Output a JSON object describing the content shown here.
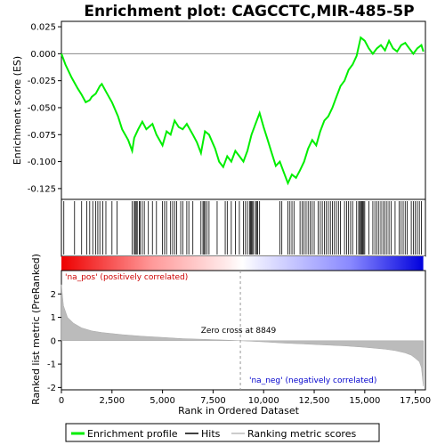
{
  "chart_data": {
    "type": "line",
    "title": "Enrichment plot: CAGCCTC,MIR-485-5P",
    "xlabel": "Rank in Ordered Dataset",
    "ylabel_top": "Enrichment score (ES)",
    "ylabel_bottom": "Ranked list metric (PreRanked)",
    "xlim": [
      0,
      18000
    ],
    "x_ticks": [
      0,
      2500,
      5000,
      7500,
      10000,
      12500,
      15000,
      17500
    ],
    "x_tick_labels": [
      "0",
      "2,500",
      "5,000",
      "7,500",
      "10,000",
      "12,500",
      "15,000",
      "17,500"
    ],
    "es_ylim": [
      -0.135,
      0.03
    ],
    "es_ticks": [
      0.025,
      0.0,
      -0.025,
      -0.05,
      -0.075,
      -0.1,
      -0.125
    ],
    "es_tick_labels": [
      "0.025",
      "0.000",
      "-0.025",
      "-0.050",
      "-0.075",
      "-0.100",
      "-0.125"
    ],
    "metric_ylim": [
      -2.1,
      3.0
    ],
    "metric_ticks": [
      2,
      1,
      0,
      -1,
      -2
    ],
    "metric_tick_labels": [
      "2",
      "1",
      "0",
      "-1",
      "-2"
    ],
    "es_curve": {
      "x": [
        0,
        200,
        500,
        800,
        1000,
        1200,
        1400,
        1500,
        1700,
        1900,
        2000,
        2200,
        2500,
        2800,
        3000,
        3300,
        3500,
        3600,
        3800,
        4000,
        4200,
        4500,
        4700,
        5000,
        5200,
        5400,
        5600,
        5800,
        6000,
        6200,
        6500,
        6700,
        6900,
        7100,
        7300,
        7600,
        7800,
        8000,
        8200,
        8400,
        8600,
        8800,
        9000,
        9200,
        9400,
        9600,
        9800,
        10000,
        10200,
        10400,
        10600,
        10800,
        11000,
        11200,
        11400,
        11600,
        11800,
        12000,
        12200,
        12400,
        12600,
        12800,
        13000,
        13200,
        13400,
        13600,
        13800,
        14000,
        14200,
        14400,
        14600,
        14800,
        15000,
        15200,
        15400,
        15600,
        15800,
        16000,
        16200,
        16400,
        16600,
        16800,
        17000,
        17200,
        17400,
        17600,
        17800,
        17900
      ],
      "y": [
        0.0,
        -0.01,
        -0.022,
        -0.032,
        -0.038,
        -0.045,
        -0.043,
        -0.04,
        -0.037,
        -0.03,
        -0.028,
        -0.035,
        -0.045,
        -0.058,
        -0.07,
        -0.08,
        -0.09,
        -0.078,
        -0.07,
        -0.063,
        -0.07,
        -0.065,
        -0.075,
        -0.085,
        -0.072,
        -0.075,
        -0.062,
        -0.068,
        -0.07,
        -0.065,
        -0.075,
        -0.082,
        -0.092,
        -0.072,
        -0.075,
        -0.088,
        -0.1,
        -0.105,
        -0.095,
        -0.1,
        -0.09,
        -0.095,
        -0.1,
        -0.09,
        -0.075,
        -0.065,
        -0.055,
        -0.068,
        -0.08,
        -0.092,
        -0.104,
        -0.1,
        -0.11,
        -0.12,
        -0.112,
        -0.115,
        -0.108,
        -0.1,
        -0.088,
        -0.08,
        -0.085,
        -0.072,
        -0.062,
        -0.058,
        -0.05,
        -0.04,
        -0.03,
        -0.025,
        -0.015,
        -0.01,
        -0.002,
        0.015,
        0.012,
        0.005,
        0.0,
        0.005,
        0.008,
        0.003,
        0.012,
        0.005,
        0.002,
        0.008,
        0.01,
        0.005,
        0.0,
        0.005,
        0.008,
        0.002
      ]
    },
    "metric_profile": {
      "x": [
        0,
        100,
        300,
        600,
        1000,
        1500,
        2000,
        3000,
        4000,
        5000,
        6000,
        7000,
        8000,
        8849,
        10000,
        11000,
        12000,
        13000,
        14000,
        15000,
        16000,
        16500,
        17000,
        17300,
        17500,
        17700,
        17800,
        17900
      ],
      "y": [
        2.4,
        1.5,
        1.0,
        0.75,
        0.55,
        0.42,
        0.35,
        0.26,
        0.19,
        0.14,
        0.09,
        0.06,
        0.03,
        0.0,
        -0.05,
        -0.1,
        -0.14,
        -0.18,
        -0.22,
        -0.28,
        -0.36,
        -0.42,
        -0.52,
        -0.62,
        -0.75,
        -0.9,
        -1.15,
        -1.95
      ]
    },
    "hits": [
      120,
      650,
      1000,
      1250,
      1400,
      1550,
      1700,
      1800,
      1900,
      2050,
      2200,
      2500,
      2750,
      3500,
      3600,
      3650,
      3700,
      3750,
      3850,
      3900,
      4000,
      4100,
      4300,
      4500,
      4700,
      5000,
      5100,
      5200,
      5400,
      5500,
      5600,
      5700,
      5900,
      6000,
      6200,
      6300,
      6500,
      6900,
      7000,
      7050,
      7100,
      7200,
      7300,
      7700,
      8100,
      8200,
      8400,
      8600,
      8800,
      9000,
      9100,
      9200,
      9300,
      9350,
      9400,
      9450,
      9500,
      9600,
      9650,
      9700,
      9800,
      10800,
      10900,
      11200,
      11300,
      11400,
      11500,
      11800,
      11900,
      12000,
      12100,
      12200,
      12300,
      12400,
      12500,
      12700,
      12800,
      12900,
      13000,
      13100,
      13200,
      13300,
      13400,
      13500,
      13600,
      13700,
      13800,
      14000,
      14100,
      14200,
      14300,
      14400,
      14600,
      14700,
      14750,
      14800,
      14850,
      14900,
      14950,
      15000,
      15200,
      15400,
      15500,
      15600,
      15700,
      15800,
      15900,
      16000,
      16100,
      16200,
      16300,
      16500,
      16700,
      16800,
      16900,
      17000,
      17100,
      17300,
      17400,
      17500,
      17600,
      17700,
      17800
    ],
    "zero_cross_rank": 8849,
    "annotations": {
      "pos_label": "'na_pos' (positively correlated)",
      "neg_label": "'na_neg' (negatively correlated)",
      "zero_cross_label": "Zero cross at 8849"
    },
    "legend": [
      {
        "label": "Enrichment profile",
        "color": "#00ee00"
      },
      {
        "label": "Hits",
        "color": "#000000"
      },
      {
        "label": "Ranking metric scores",
        "color": "#bbbbbb"
      }
    ]
  },
  "colors": {
    "es_line": "#00ee00",
    "pos_text": "#cc0000",
    "neg_text": "#0000cc",
    "metric_fill": "#bbbbbb"
  }
}
